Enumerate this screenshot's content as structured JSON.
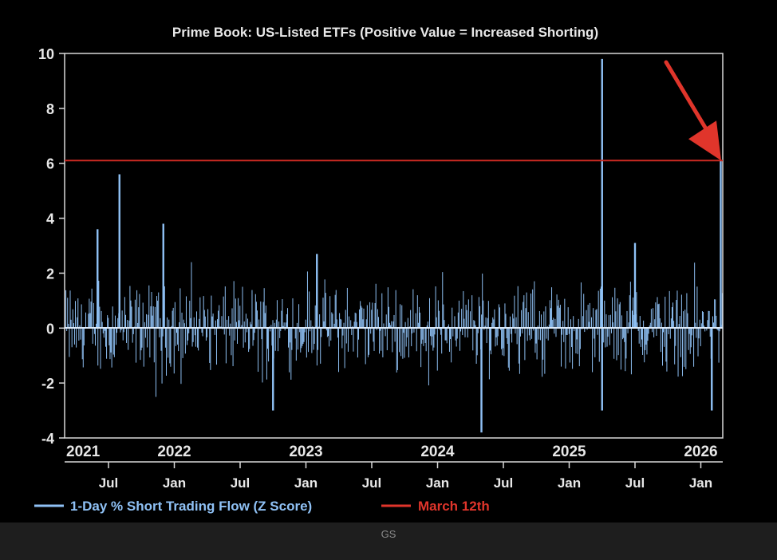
{
  "caption": "GS",
  "chart_data": {
    "type": "bar",
    "title": "Prime Book: US-Listed ETFs (Positive Value = Increased Shorting)",
    "xlabel": "",
    "ylabel": "",
    "ylim": [
      -4,
      10
    ],
    "yticks": [
      -4,
      -2,
      0,
      2,
      4,
      6,
      8,
      10
    ],
    "year_labels": [
      "2021",
      "2022",
      "2023",
      "2024",
      "2025",
      "2026"
    ],
    "month_ticks": [
      "Jul",
      "Jan",
      "Jul",
      "Jan",
      "Jul",
      "Jan",
      "Jul",
      "Jan",
      "Jul",
      "Jan"
    ],
    "x_start": "2021-03",
    "x_end": "2026-03",
    "reference_line": {
      "name": "March 12th",
      "value": 6.1,
      "color": "#cc2a22"
    },
    "series": [
      {
        "name": "1-Day % Short Trading Flow (Z Score)",
        "color": "#8fc1f5",
        "notable_points": [
          {
            "date": "2021-06",
            "value": 3.6
          },
          {
            "date": "2021-08",
            "value": 5.6
          },
          {
            "date": "2021-12",
            "value": 3.8
          },
          {
            "date": "2022-10",
            "value": -3.0
          },
          {
            "date": "2023-02",
            "value": 2.7
          },
          {
            "date": "2024-05",
            "value": -3.8
          },
          {
            "date": "2025-04",
            "value": 9.8
          },
          {
            "date": "2025-04",
            "value": -3.0
          },
          {
            "date": "2025-07",
            "value": 3.1
          },
          {
            "date": "2026-02",
            "value": -3.0
          },
          {
            "date": "2026-03-12",
            "value": 6.1
          }
        ]
      }
    ],
    "legend": {
      "position": "bottom-left",
      "entries": [
        {
          "label": "1-Day % Short Trading Flow (Z Score)",
          "color": "#8fc1f5"
        },
        {
          "label": "March 12th",
          "color": "#e0352b"
        }
      ]
    },
    "annotation": {
      "type": "arrow",
      "color": "#e0352b",
      "target": "2026-03-12"
    }
  }
}
